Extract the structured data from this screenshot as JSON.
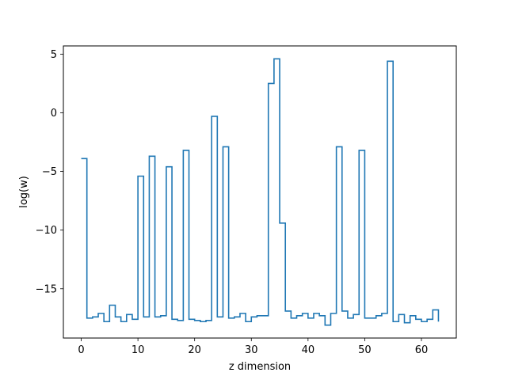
{
  "chart_data": {
    "type": "line",
    "drawstyle": "steps-post",
    "xlabel": "z dimension",
    "ylabel": "log(w)",
    "xlim": [
      -3.15,
      66.15
    ],
    "ylim": [
      -19.2,
      5.7
    ],
    "xticks": [
      0,
      10,
      20,
      30,
      40,
      50,
      60
    ],
    "yticks": [
      5,
      0,
      -5,
      -10,
      -15
    ],
    "ytick_labels": [
      "5",
      "0",
      "−5",
      "−10",
      "−15"
    ],
    "grid": false,
    "series": [
      {
        "color": "#1f77b4",
        "x": [
          0,
          1,
          2,
          3,
          4,
          5,
          6,
          7,
          8,
          9,
          10,
          11,
          12,
          13,
          14,
          15,
          16,
          17,
          18,
          19,
          20,
          21,
          22,
          23,
          24,
          25,
          26,
          27,
          28,
          29,
          30,
          31,
          32,
          33,
          34,
          35,
          36,
          37,
          38,
          39,
          40,
          41,
          42,
          43,
          44,
          45,
          46,
          47,
          48,
          49,
          50,
          51,
          52,
          53,
          54,
          55,
          56,
          57,
          58,
          59,
          60,
          61,
          62,
          63
        ],
        "y": [
          -3.9,
          -17.5,
          -17.4,
          -17.1,
          -17.8,
          -16.4,
          -17.4,
          -17.8,
          -17.2,
          -17.6,
          -5.4,
          -17.4,
          -3.7,
          -17.4,
          -17.3,
          -4.6,
          -17.6,
          -17.7,
          -3.2,
          -17.6,
          -17.7,
          -17.8,
          -17.7,
          -0.3,
          -17.4,
          -2.9,
          -17.5,
          -17.4,
          -17.1,
          -17.8,
          -17.4,
          -17.3,
          -17.3,
          2.5,
          4.6,
          -9.4,
          -16.9,
          -17.5,
          -17.3,
          -17.1,
          -17.5,
          -17.1,
          -17.3,
          -18.1,
          -17.1,
          -2.9,
          -16.9,
          -17.5,
          -17.2,
          -3.2,
          -17.5,
          -17.5,
          -17.3,
          -17.1,
          4.4,
          -17.8,
          -17.2,
          -17.9,
          -17.3,
          -17.6,
          -17.8,
          -17.6,
          -16.8,
          -17.8
        ]
      }
    ]
  }
}
